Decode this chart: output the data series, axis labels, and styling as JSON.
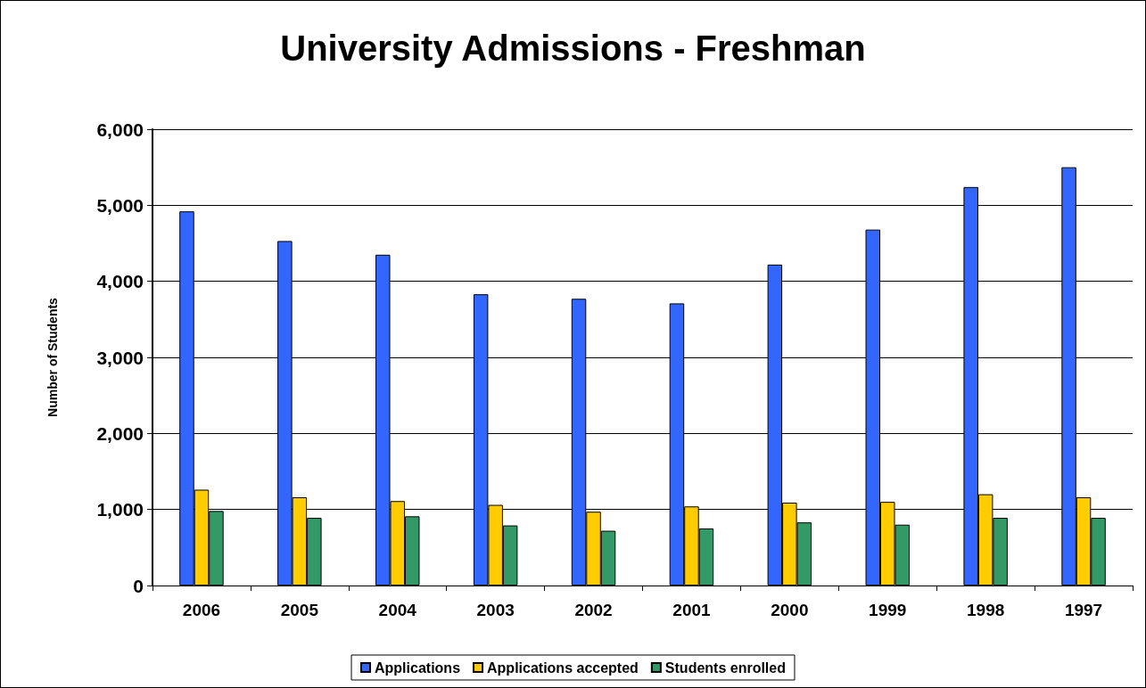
{
  "chart_data": {
    "type": "bar",
    "title": "University Admissions - Freshman",
    "ylabel": "Number of Students",
    "categories": [
      "2006",
      "2005",
      "2004",
      "2003",
      "2002",
      "2001",
      "2000",
      "1999",
      "1998",
      "1997"
    ],
    "series": [
      {
        "name": "Applications",
        "color": "#3366ff",
        "values": [
          4920,
          4530,
          4350,
          3830,
          3770,
          3710,
          4220,
          4680,
          5240,
          5500
        ]
      },
      {
        "name": "Applications accepted",
        "color": "#ffcc00",
        "values": [
          1260,
          1160,
          1110,
          1060,
          970,
          1040,
          1090,
          1100,
          1200,
          1160
        ]
      },
      {
        "name": "Students enrolled",
        "color": "#339966",
        "values": [
          980,
          890,
          910,
          790,
          720,
          750,
          830,
          800,
          890,
          890
        ]
      }
    ],
    "ylim": [
      0,
      6000
    ],
    "yticks": [
      0,
      {
        "value": 1000,
        "label": "1,000"
      },
      {
        "value": 2000,
        "label": "2,000"
      },
      {
        "value": 3000,
        "label": "3,000"
      },
      {
        "value": 4000,
        "label": "4,000"
      },
      {
        "value": 5000,
        "label": "5,000"
      },
      {
        "value": 6000,
        "label": "6,000"
      }
    ],
    "grid": "y",
    "legend": "bottom"
  }
}
